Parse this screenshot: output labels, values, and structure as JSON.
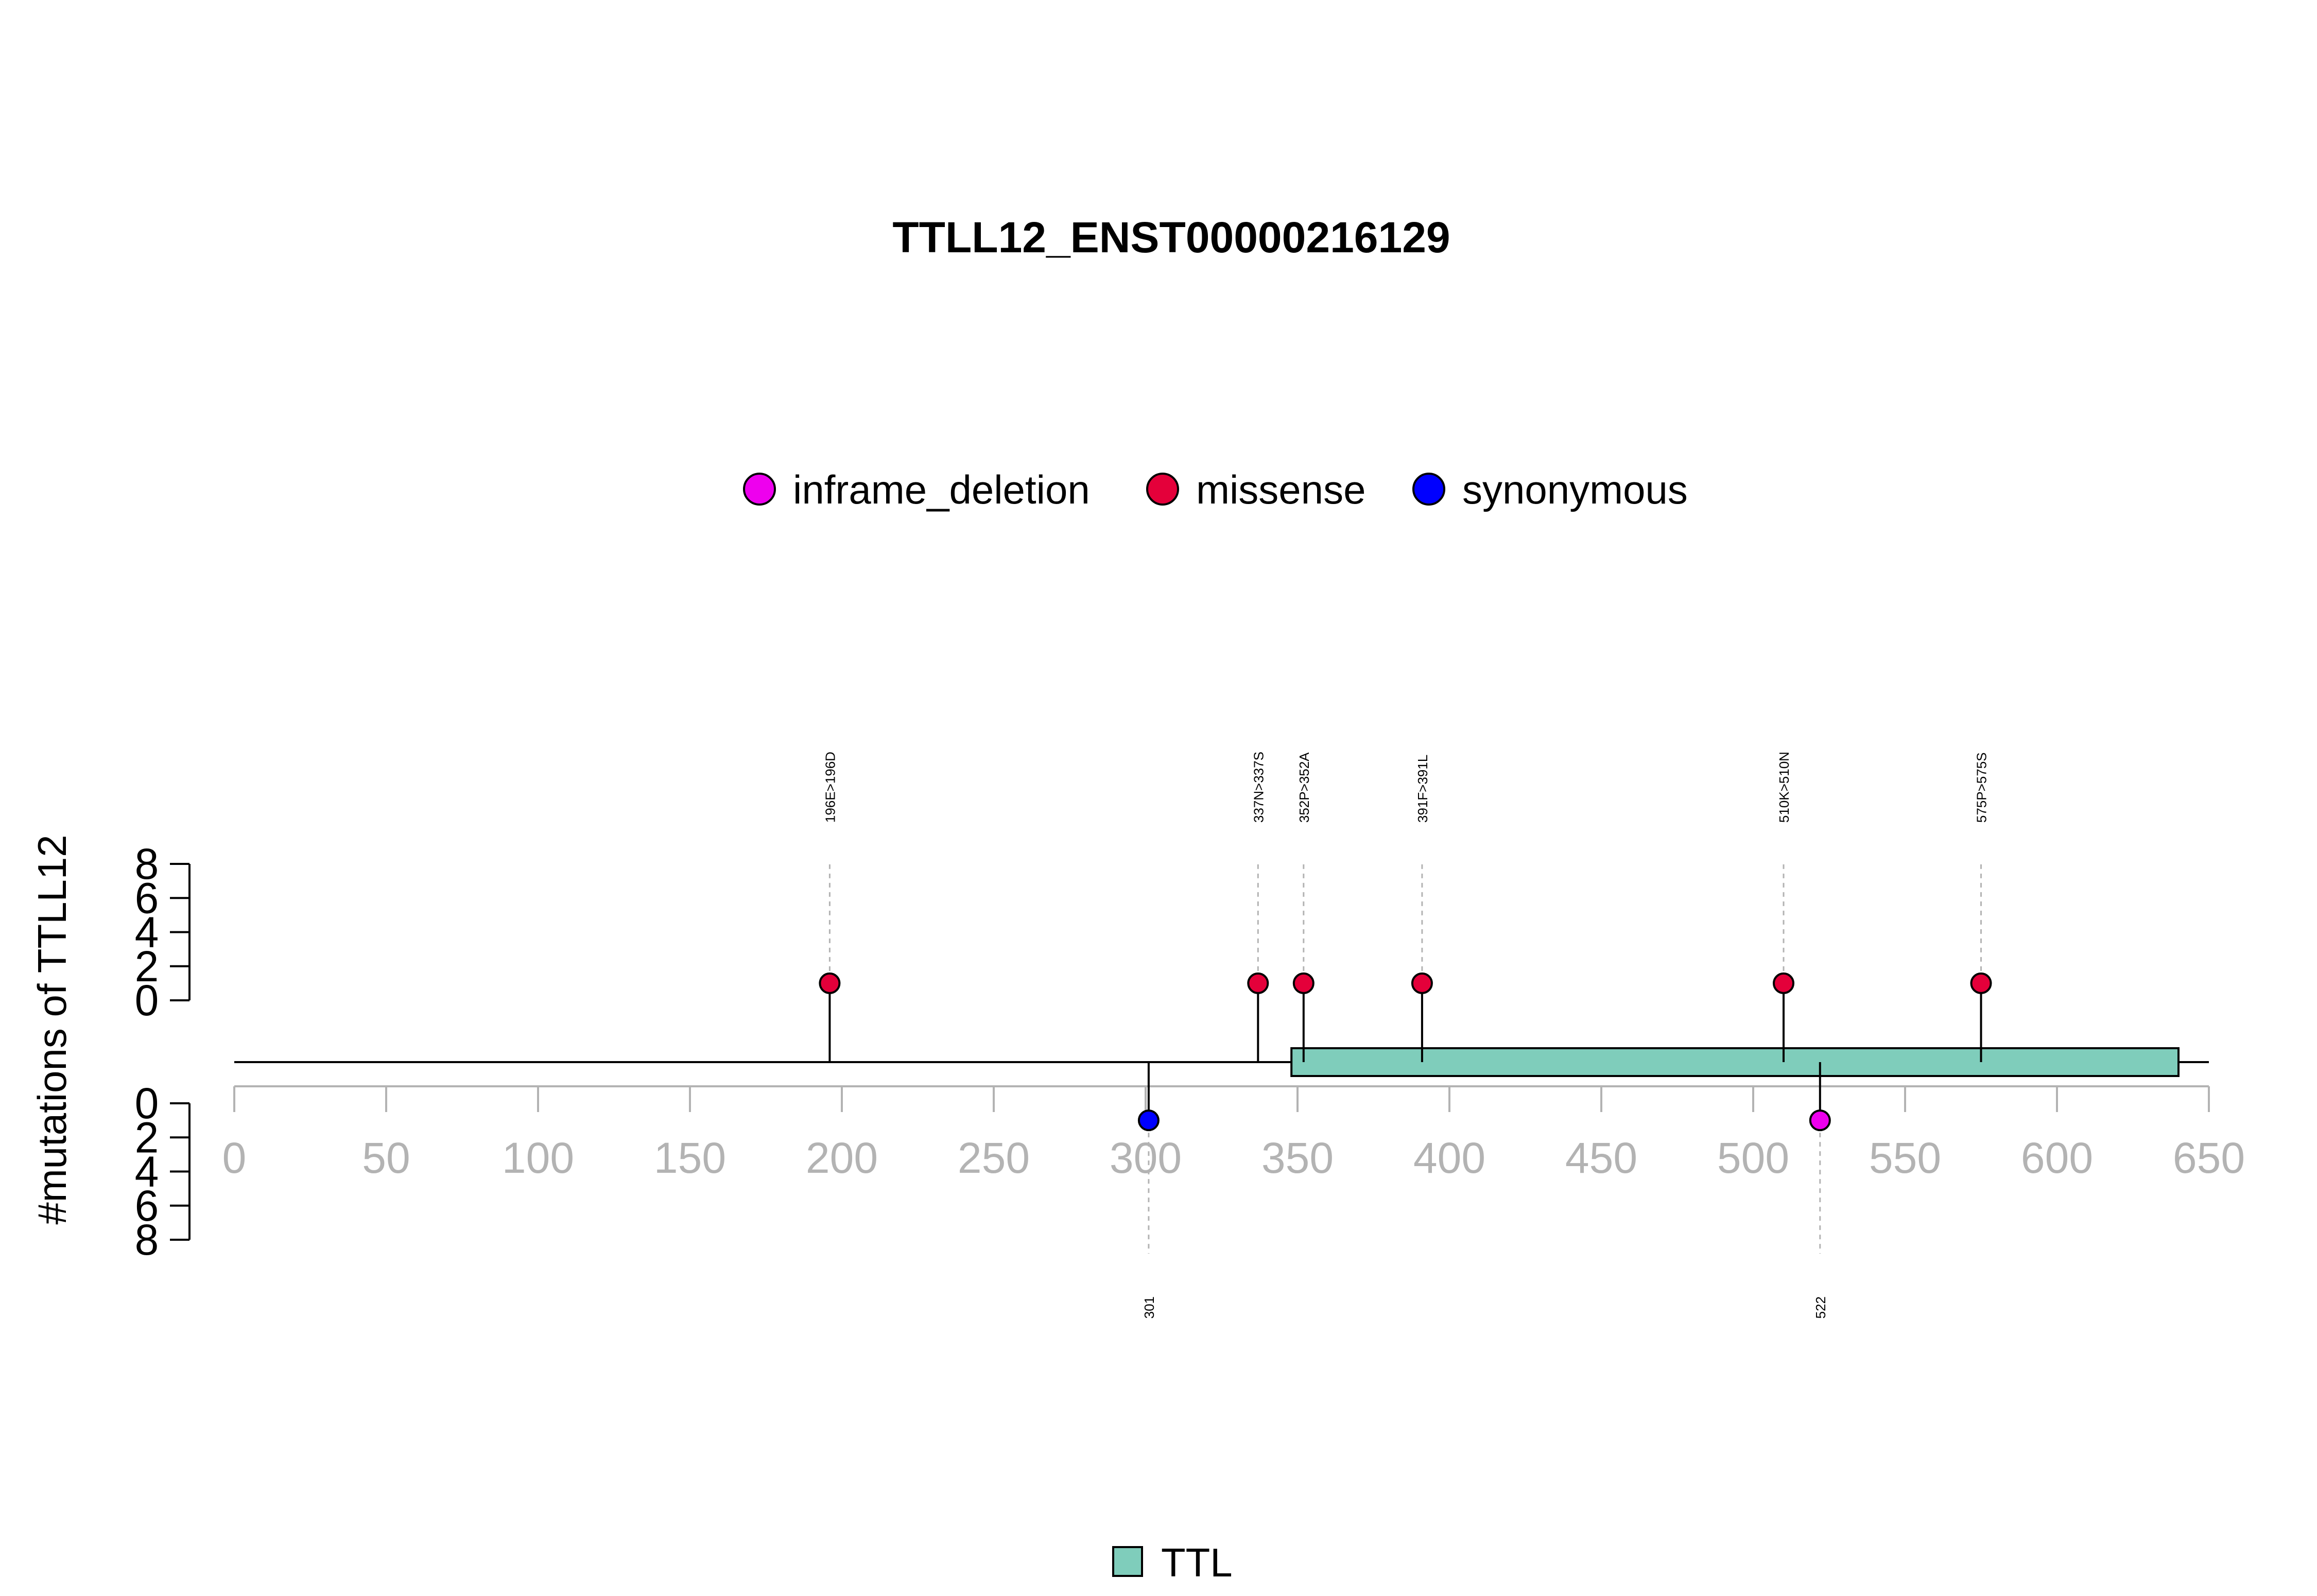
{
  "chart_data": {
    "type": "lollipop",
    "title": "TTLL12_ENST00000216129",
    "ylabel": "#mutations of TTLL12",
    "x_ticks": [
      0,
      50,
      100,
      150,
      200,
      250,
      300,
      350,
      400,
      450,
      500,
      550,
      600,
      650
    ],
    "xlim": [
      0,
      650
    ],
    "protein_length": 650,
    "y_ticks_up": [
      0,
      2,
      4,
      6,
      8
    ],
    "y_ticks_down": [
      0,
      2,
      4,
      6,
      8
    ],
    "ylim": [
      0,
      8
    ],
    "legend": [
      {
        "label": "inframe_deletion",
        "color": "#ee00ee"
      },
      {
        "label": "missense",
        "color": "#e4003a"
      },
      {
        "label": "synonymous",
        "color": "#0000ff"
      }
    ],
    "domains": [
      {
        "name": "TTL",
        "start": 348,
        "end": 640,
        "color": "#7fcdbb"
      }
    ],
    "mutations_up": [
      {
        "position": 196,
        "label": "196E>196D",
        "type": "missense",
        "count": 1
      },
      {
        "position": 337,
        "label": "337N>337S",
        "type": "missense",
        "count": 1
      },
      {
        "position": 352,
        "label": "352P>352A",
        "type": "missense",
        "count": 1
      },
      {
        "position": 391,
        "label": "391F>391L",
        "type": "missense",
        "count": 1
      },
      {
        "position": 510,
        "label": "510K>510N",
        "type": "missense",
        "count": 1
      },
      {
        "position": 575,
        "label": "575P>575S",
        "type": "missense",
        "count": 1
      }
    ],
    "mutations_down": [
      {
        "position": 301,
        "label": "301",
        "type": "synonymous",
        "count": 1
      },
      {
        "position": 522,
        "label": "522",
        "type": "inframe_deletion",
        "count": 1
      }
    ]
  }
}
